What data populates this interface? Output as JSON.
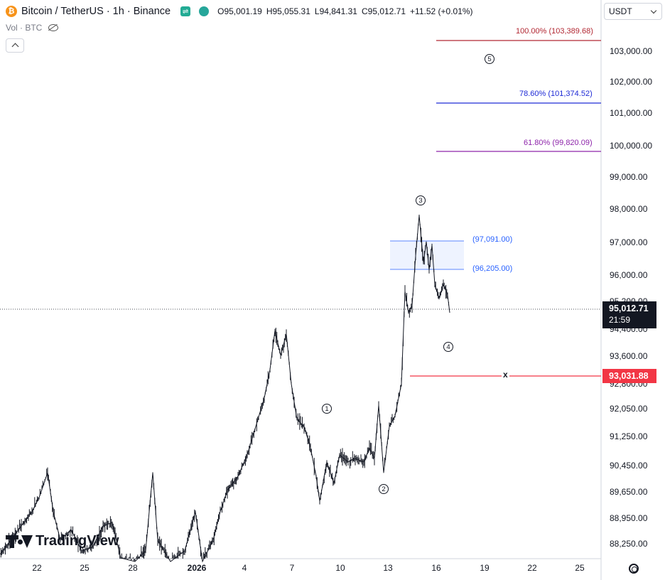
{
  "header": {
    "symbol_title": "Bitcoin / TetherUS · 1h · Binance",
    "icon": "bitcoin-icon",
    "ohlc": {
      "open_label": "O",
      "open": "95,001.19",
      "high_label": "H",
      "high": "95,055.31",
      "low_label": "L",
      "low": "94,841.31",
      "close_label": "C",
      "close": "95,012.71",
      "change": "+11.52 (+0.01%)"
    }
  },
  "volume_row": {
    "label": "Vol · BTC",
    "icon": "eye-hidden-icon"
  },
  "currency_selector": {
    "value": "USDT"
  },
  "price_axis": {
    "labels": [
      "103,000.00",
      "102,000.00",
      "101,000.00",
      "100,000.00",
      "99,000.00",
      "98,000.00",
      "97,000.00",
      "96,000.00",
      "95,200.00",
      "94,400.00",
      "93,600.00",
      "92,800.00",
      "92,050.00",
      "91,250.00",
      "90,450.00",
      "89,650.00",
      "88,950.00",
      "88,250.00"
    ],
    "current_price": "95,012.71",
    "countdown": "21:59",
    "stop_level": "93,031.88"
  },
  "time_axis": {
    "labels": [
      {
        "text": "22",
        "bold": false
      },
      {
        "text": "25",
        "bold": false
      },
      {
        "text": "28",
        "bold": false
      },
      {
        "text": "2026",
        "bold": true
      },
      {
        "text": "4",
        "bold": false
      },
      {
        "text": "7",
        "bold": false
      },
      {
        "text": "10",
        "bold": false
      },
      {
        "text": "13",
        "bold": false
      },
      {
        "text": "16",
        "bold": false
      },
      {
        "text": "19",
        "bold": false
      },
      {
        "text": "22",
        "bold": false
      },
      {
        "text": "25",
        "bold": false
      }
    ]
  },
  "fib_levels": [
    {
      "label": "100.00% (103,389.68)",
      "price": 103389.68,
      "color": "#b22833"
    },
    {
      "label": "78.60% (101,374.52)",
      "price": 101374.52,
      "color": "#1f2bd6"
    },
    {
      "label": "61.80% (99,820.09)",
      "price": 99820.09,
      "color": "#8e24aa"
    }
  ],
  "zone": {
    "upper_label": "(97,091.00)",
    "upper": 97091.0,
    "lower_label": "(96,205.00)",
    "lower": 96205.0
  },
  "invalidation_mark": "x",
  "waves": [
    "1",
    "2",
    "3",
    "4",
    "5"
  ],
  "brand": {
    "name": "TradingView"
  },
  "chart_data": {
    "type": "candlestick",
    "symbol": "BTCUSDT",
    "timeframe": "1h",
    "x_range": [
      "Dec 20",
      "Jan 27"
    ],
    "y_range": [
      88000,
      103600
    ],
    "key_points": [
      {
        "date": "Jan 6",
        "price": 94700
      },
      {
        "date": "Jan 9",
        "price": 89400
      },
      {
        "date": "Jan 9",
        "price": 92050,
        "label": "1"
      },
      {
        "date": "Jan 12",
        "price": 90150,
        "label": "2"
      },
      {
        "date": "Jan 15",
        "price": 97900,
        "label": "3"
      },
      {
        "date": "Jan 16",
        "price": 94300,
        "label": "4"
      }
    ],
    "last_price": 95012.71,
    "colors": {
      "candles": "#131722",
      "stop": "#f23645",
      "zone_fill": "#eef3ff",
      "zone_border": "#2962ff"
    }
  }
}
